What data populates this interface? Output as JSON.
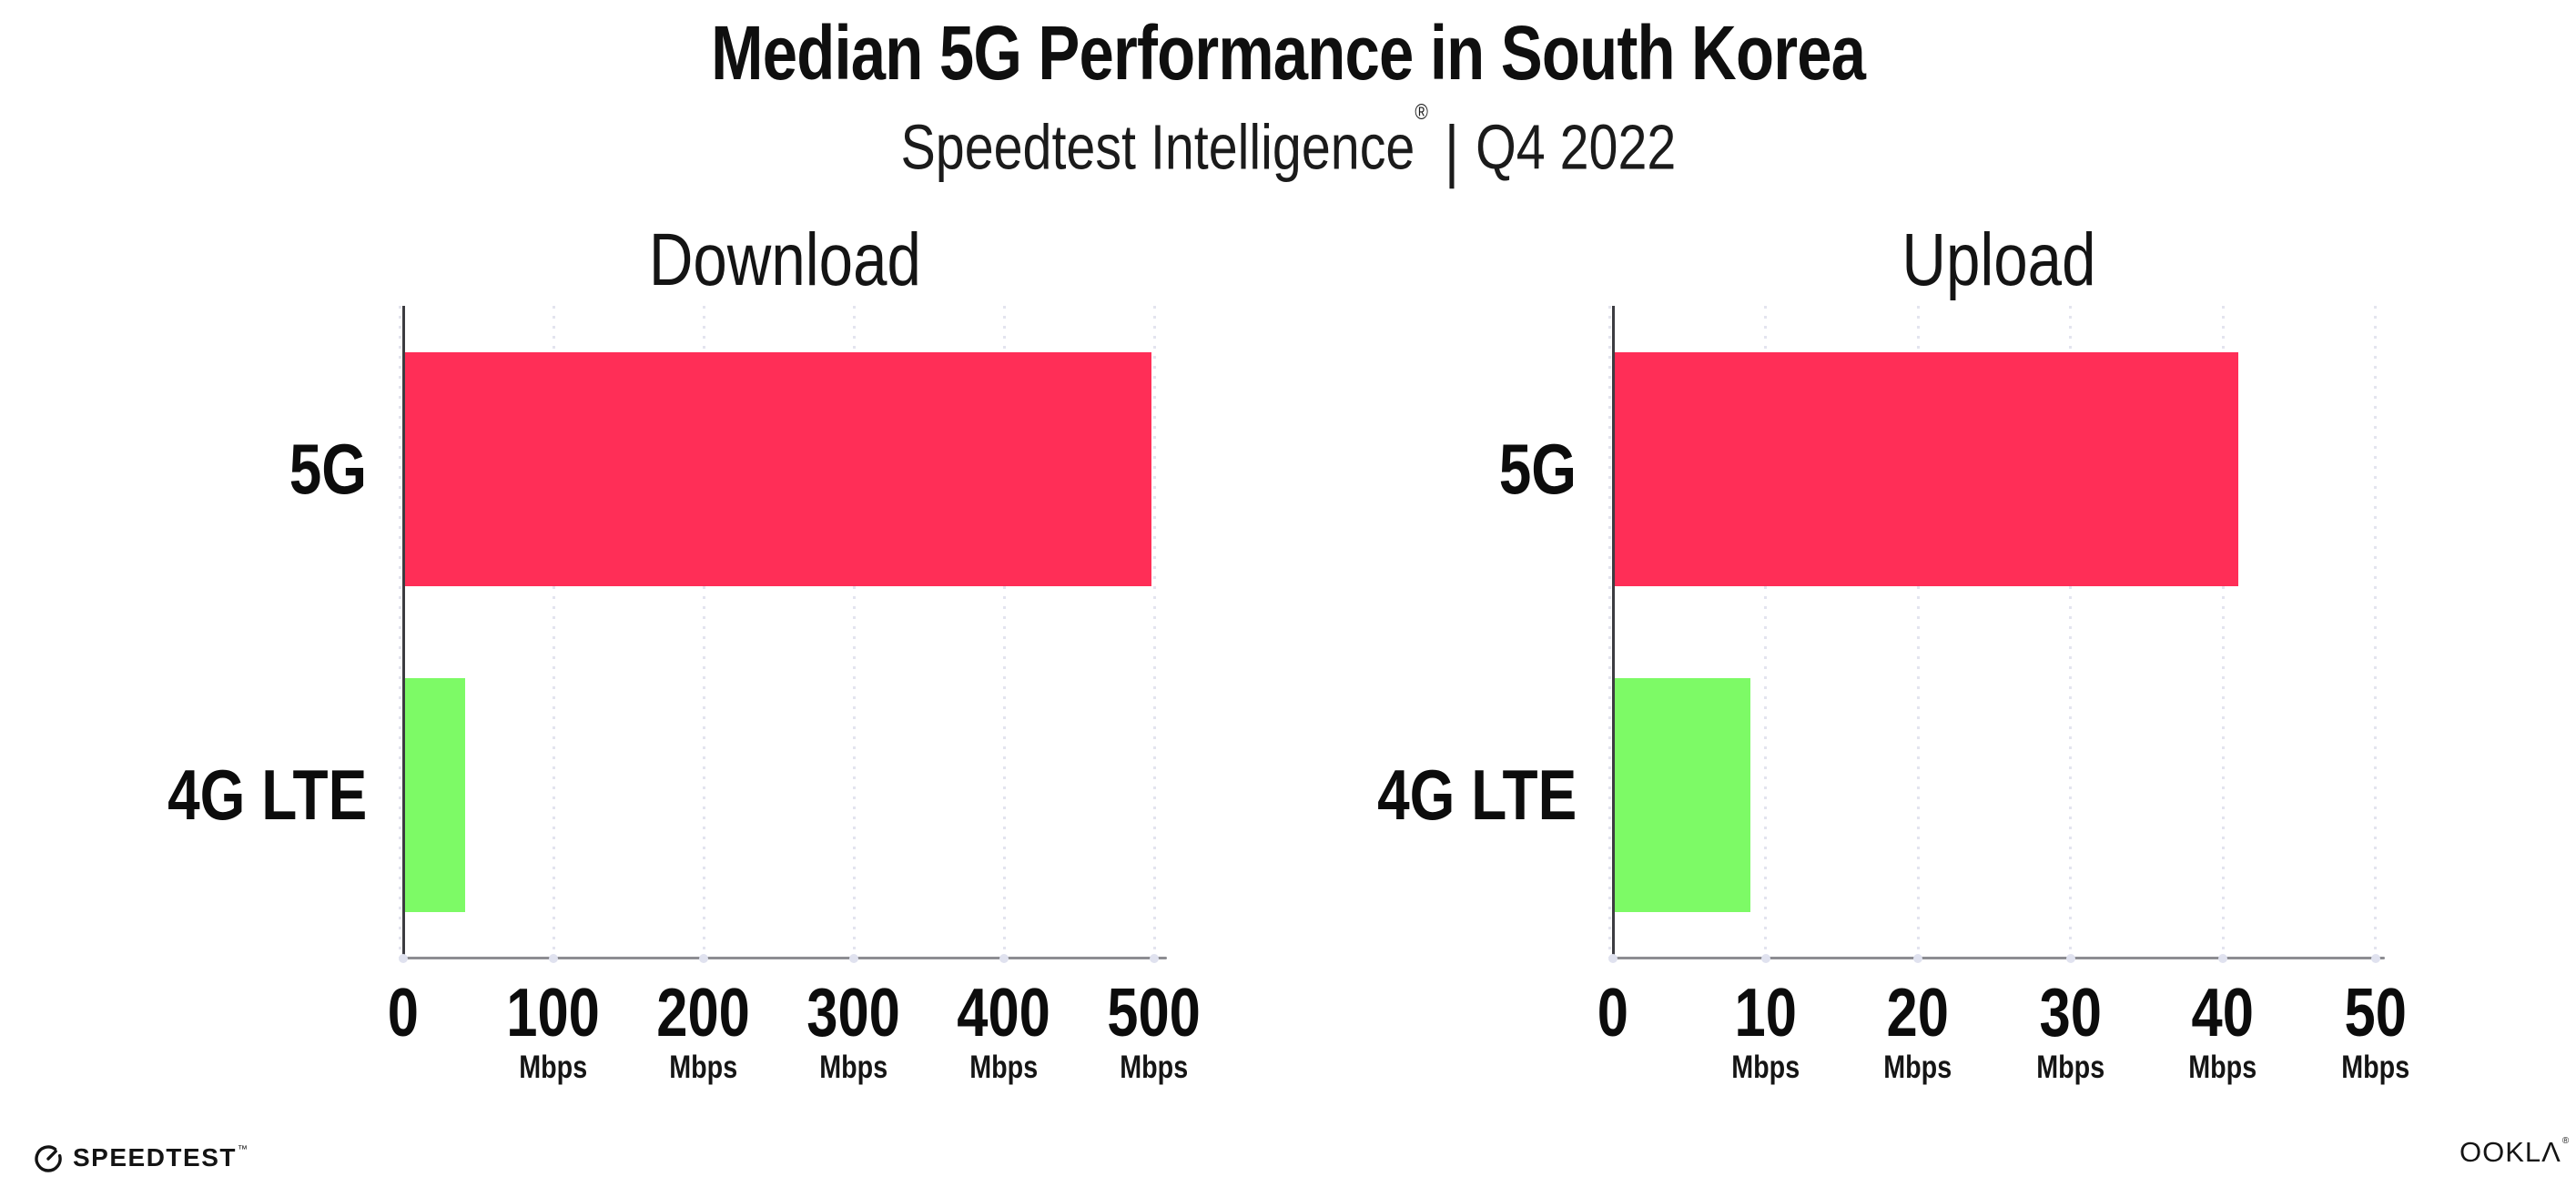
{
  "header": {
    "title": "Median 5G Performance in South Korea",
    "subtitle_brand": "Speedtest Intelligence",
    "subtitle_registered": "®",
    "subtitle_separator": "|",
    "subtitle_period": "Q4 2022"
  },
  "chart_data": [
    {
      "type": "bar",
      "orientation": "horizontal",
      "title": "Download",
      "categories": [
        "5G",
        "4G LTE"
      ],
      "values": [
        498,
        41
      ],
      "unit": "Mbps",
      "xlim": [
        0,
        500
      ],
      "xticks": [
        0,
        100,
        200,
        300,
        400,
        500
      ],
      "xtick_labels": [
        {
          "num": "0",
          "unit": ""
        },
        {
          "num": "100",
          "unit": "Mbps"
        },
        {
          "num": "200",
          "unit": "Mbps"
        },
        {
          "num": "300",
          "unit": "Mbps"
        },
        {
          "num": "400",
          "unit": "Mbps"
        },
        {
          "num": "500",
          "unit": "Mbps"
        }
      ],
      "grid": "dotted-vertical",
      "legend": "none"
    },
    {
      "type": "bar",
      "orientation": "horizontal",
      "title": "Upload",
      "categories": [
        "5G",
        "4G LTE"
      ],
      "values": [
        41,
        9
      ],
      "unit": "Mbps",
      "xlim": [
        0,
        50
      ],
      "xticks": [
        0,
        10,
        20,
        30,
        40,
        50
      ],
      "xtick_labels": [
        {
          "num": "0",
          "unit": ""
        },
        {
          "num": "10",
          "unit": "Mbps"
        },
        {
          "num": "20",
          "unit": "Mbps"
        },
        {
          "num": "30",
          "unit": "Mbps"
        },
        {
          "num": "40",
          "unit": "Mbps"
        },
        {
          "num": "50",
          "unit": "Mbps"
        }
      ],
      "grid": "dotted-vertical",
      "legend": "none"
    }
  ],
  "colors": {
    "bar_5g": "#ff2e57",
    "bar_4g_lte": "#7dfa66",
    "gridline": "#e3e4ef",
    "axis_dot": "#e0e2ef",
    "axis_x": "#8d8d92",
    "axis_y": "#3c3c41",
    "text": "#0f0f0f",
    "background": "#ffffff"
  },
  "icons": {
    "speedtest_gauge": "circle-gauge-with-needle"
  },
  "footer": {
    "speedtest_brand": "SPEEDTEST",
    "speedtest_trademark": "™",
    "ookla_brand": "OOKLΛ",
    "ookla_registered": "®"
  }
}
